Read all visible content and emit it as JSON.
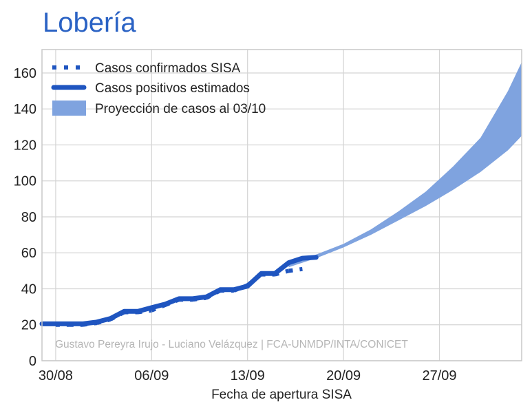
{
  "chart_data": {
    "type": "line",
    "title": "Lobería",
    "xlabel": "Fecha de apertura SISA",
    "ylabel": "",
    "ylim": [
      0,
      173
    ],
    "xlim": [
      "2020-08-29",
      "2020-10-03"
    ],
    "x_ticks": [
      {
        "date": "2020-08-30",
        "label": "30/08"
      },
      {
        "date": "2020-09-06",
        "label": "06/09"
      },
      {
        "date": "2020-09-13",
        "label": "13/09"
      },
      {
        "date": "2020-09-20",
        "label": "20/09"
      },
      {
        "date": "2020-09-27",
        "label": "27/09"
      }
    ],
    "y_ticks": [
      0,
      20,
      40,
      60,
      80,
      100,
      120,
      140,
      160
    ],
    "grid": true,
    "legend_position": "top-left",
    "series": [
      {
        "name": "Casos confirmados SISA",
        "style": "dotted",
        "color": "#1f55c0",
        "x": [
          "2020-08-30",
          "2020-08-31",
          "2020-09-01",
          "2020-09-02",
          "2020-09-03",
          "2020-09-04",
          "2020-09-05",
          "2020-09-06",
          "2020-09-07",
          "2020-09-08",
          "2020-09-09",
          "2020-09-10",
          "2020-09-11",
          "2020-09-12",
          "2020-09-13",
          "2020-09-14",
          "2020-09-15",
          "2020-09-16",
          "2020-09-17"
        ],
        "values": [
          20,
          20,
          20,
          21,
          23,
          27,
          27,
          28,
          31,
          34,
          34,
          35,
          39,
          39,
          42,
          48,
          48,
          50,
          51
        ]
      },
      {
        "name": "Casos positivos estimados",
        "style": "solid",
        "color": "#1f55c0",
        "x": [
          "2020-08-29",
          "2020-08-30",
          "2020-08-31",
          "2020-09-01",
          "2020-09-02",
          "2020-09-03",
          "2020-09-04",
          "2020-09-05",
          "2020-09-06",
          "2020-09-07",
          "2020-09-08",
          "2020-09-09",
          "2020-09-10",
          "2020-09-11",
          "2020-09-12",
          "2020-09-13",
          "2020-09-14",
          "2020-09-15",
          "2020-09-16",
          "2020-09-17",
          "2020-09-18"
        ],
        "values": [
          20.5,
          20.5,
          20.5,
          20.5,
          21.5,
          23.5,
          27.5,
          27.5,
          29.5,
          31.5,
          34.5,
          34.5,
          35.5,
          39.5,
          39.5,
          41.5,
          48.5,
          48.5,
          54.5,
          57,
          57.5
        ]
      },
      {
        "name": "Proyección de casos al 03/10",
        "style": "band",
        "color": "#7fa3df",
        "x": [
          "2020-09-16",
          "2020-09-18",
          "2020-09-20",
          "2020-09-22",
          "2020-09-24",
          "2020-09-26",
          "2020-09-28",
          "2020-09-30",
          "2020-10-02",
          "2020-10-03"
        ],
        "lower": [
          52,
          57,
          63,
          70,
          78,
          86,
          95,
          105,
          117,
          125
        ],
        "upper": [
          54,
          59,
          65,
          73,
          83,
          94,
          108,
          124,
          150,
          166
        ]
      }
    ],
    "annotations": [
      "Gustavo Pereyra Irujo - Luciano Velázquez | FCA-UNMDP/INTA/CONICET"
    ]
  }
}
